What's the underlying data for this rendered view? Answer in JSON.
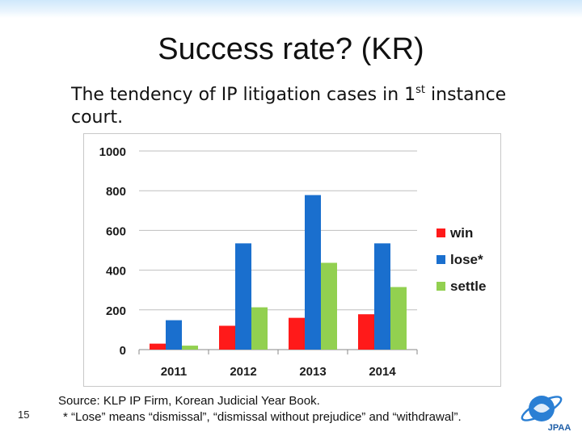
{
  "slide": {
    "title": "Success rate? (KR)",
    "subtitle_before_sup": "The tendency of IP litigation cases in 1",
    "subtitle_sup": "st",
    "subtitle_after_sup": " instance court.",
    "source": "Source: KLP IP Firm, Korean Judicial Year Book.",
    "note": "* “Lose” means “dismissal”, “dismissal without prejudice” and “withdrawal”.",
    "page_number": "15",
    "logo_text": "JPAA"
  },
  "chart_data": {
    "type": "bar",
    "categories": [
      "2011",
      "2012",
      "2013",
      "2014"
    ],
    "series": [
      {
        "name": "win",
        "color": "#ff1a1a",
        "values": [
          30,
          120,
          160,
          178
        ]
      },
      {
        "name": "lose*",
        "color": "#1a6fce",
        "values": [
          148,
          535,
          778,
          535
        ]
      },
      {
        "name": "settle",
        "color": "#92d050",
        "values": [
          20,
          213,
          437,
          315
        ]
      }
    ],
    "ylim": [
      0,
      1000
    ],
    "yticks": [
      "0",
      "200",
      "400",
      "600",
      "800",
      "1000"
    ],
    "grid": true,
    "legend": "right"
  }
}
